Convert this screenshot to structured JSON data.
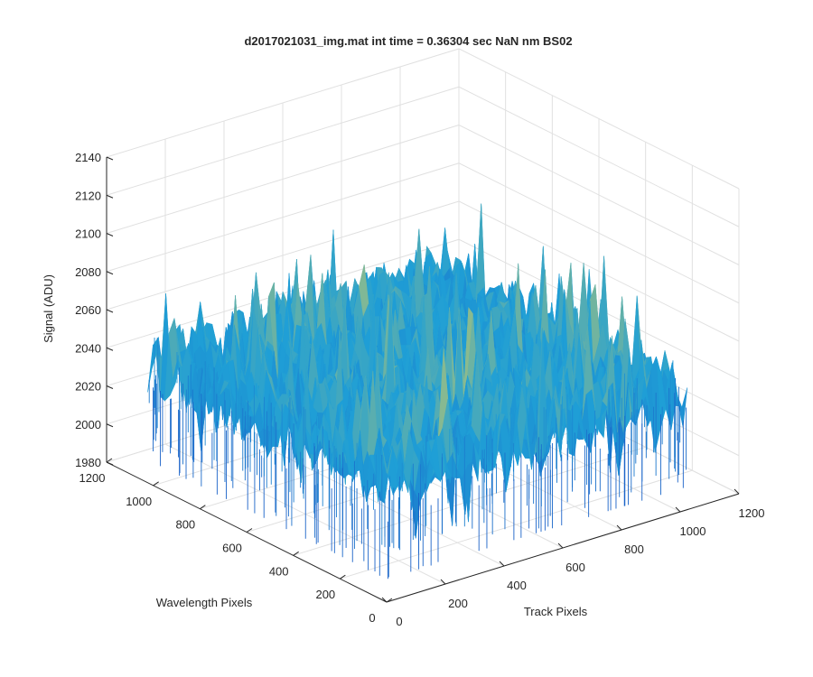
{
  "chart_data": {
    "type": "surface",
    "title": "d2017021031_img.mat int time = 0.36304 sec  NaN nm BS02",
    "xlabel": "Track Pixels",
    "ylabel": "Wavelength Pixels",
    "zlabel": "Signal (ADU)",
    "xlim": [
      0,
      1200
    ],
    "ylim": [
      0,
      1200
    ],
    "zlim": [
      1980,
      2140
    ],
    "x_ticks": [
      "0",
      "200",
      "400",
      "600",
      "800",
      "1000",
      "1200"
    ],
    "y_ticks": [
      "0",
      "200",
      "400",
      "600",
      "800",
      "1000",
      "1200"
    ],
    "z_ticks": [
      "1980",
      "2000",
      "2020",
      "2040",
      "2060",
      "2080",
      "2100",
      "2120",
      "2140"
    ],
    "grid": true,
    "colormap": "parula",
    "surface": {
      "x_range": [
        0,
        1024
      ],
      "y_range": [
        0,
        1024
      ],
      "mean_signal": 2042,
      "noise_min": 1992,
      "noise_max": 2140
    },
    "colors": {
      "low": "#1a62c8",
      "mid": "#1f9fd6",
      "high": "#d7ce5c",
      "axis": "#262626",
      "grid": "#e0e0e0"
    }
  }
}
